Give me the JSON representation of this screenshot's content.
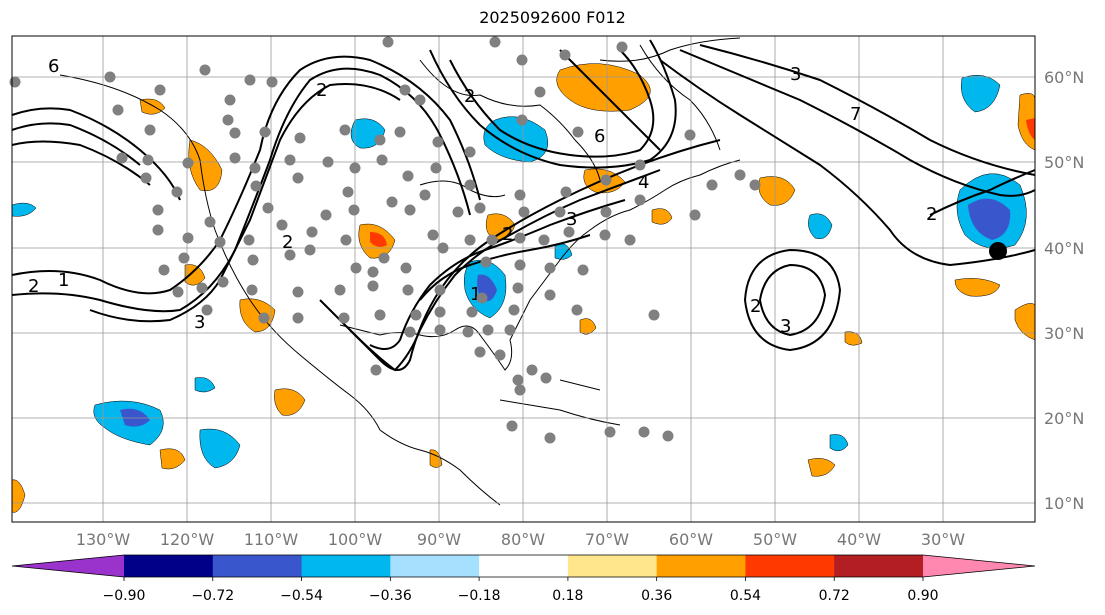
{
  "title": "2025092600 F012",
  "lat_labels": [
    "10°N",
    "20°N",
    "30°N",
    "40°N",
    "50°N",
    "60°N"
  ],
  "lon_labels": [
    "130°W",
    "120°W",
    "110°W",
    "100°W",
    "90°W",
    "80°W",
    "70°W",
    "60°W",
    "50°W",
    "40°W",
    "30°W"
  ],
  "colorbar": {
    "ticks": [
      "−0.90",
      "−0.72",
      "−0.54",
      "−0.36",
      "−0.18",
      "0.18",
      "0.36",
      "0.54",
      "0.72",
      "0.90"
    ],
    "colors": [
      "#9933cc",
      "#000088",
      "#3a56cc",
      "#00b7ee",
      "#a6e0ff",
      "#ffffff",
      "#ffe68c",
      "#ff9f00",
      "#ff3a00",
      "#b21e22",
      "#ff88b0"
    ]
  },
  "contour_labels": [
    "6",
    "2",
    "1",
    "2",
    "3",
    "2",
    "1",
    "2",
    "3",
    "4",
    "6",
    "3",
    "2",
    "2",
    "3",
    "7",
    "2"
  ],
  "colors": {
    "contour": "#000000",
    "coast": "#000000",
    "grid": "#999999",
    "station": "#808080",
    "marker": "#000000"
  }
}
